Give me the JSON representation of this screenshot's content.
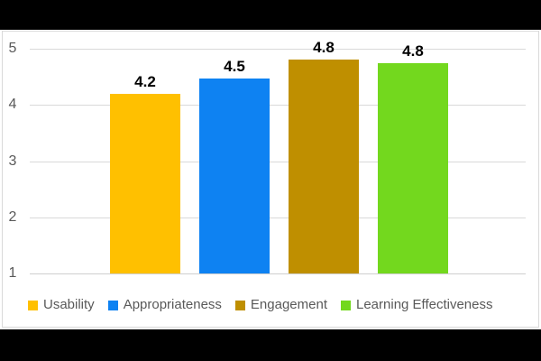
{
  "chart_data": {
    "type": "bar",
    "title": "",
    "categories": [
      "Usability",
      "Appropriateness",
      "Engagement",
      "Learning Effectiveness"
    ],
    "values": [
      4.2,
      4.5,
      4.8,
      4.8
    ],
    "value_labels": [
      "4.2",
      "4.5",
      "4.8",
      "4.8"
    ],
    "colors": [
      "#FFC000",
      "#0E82F2",
      "#BF8F00",
      "#73D81E"
    ],
    "ylim": [
      1,
      5
    ],
    "yticks": [
      "5",
      "4",
      "3",
      "2",
      "1"
    ],
    "grid": true,
    "legend_position": "bottom",
    "plotted_values": [
      4.2,
      4.47,
      4.8,
      4.75
    ],
    "background_color": "#000000",
    "panel_color": "#ffffff",
    "gridline_color": "#D9D9D9",
    "tick_label_color": "#595959",
    "data_label_color": "#000000"
  }
}
